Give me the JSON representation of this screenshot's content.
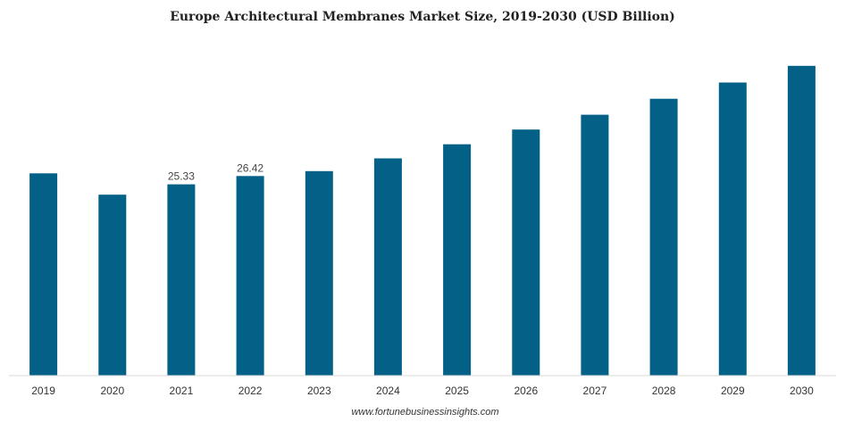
{
  "chart_data": {
    "type": "bar",
    "title": "Europe Architectural Membranes Market Size, 2019-2030 (USD Billion)",
    "xlabel": "",
    "ylabel": "",
    "categories": [
      "2019",
      "2020",
      "2021",
      "2022",
      "2023",
      "2024",
      "2025",
      "2026",
      "2027",
      "2028",
      "2029",
      "2030"
    ],
    "values": [
      26.78,
      23.96,
      25.33,
      26.42,
      27.07,
      28.76,
      30.63,
      32.58,
      34.54,
      36.66,
      38.8,
      41.02
    ],
    "data_labels": [
      null,
      null,
      "25.33",
      "26.42",
      null,
      null,
      null,
      null,
      null,
      null,
      null,
      null
    ],
    "ylim": [
      0,
      41.7
    ],
    "grid": false,
    "legend": "none",
    "colors": {
      "bar": "#036087",
      "axis": "#d9d9d9"
    }
  },
  "source": "www.fortunebusinessinsights.com"
}
